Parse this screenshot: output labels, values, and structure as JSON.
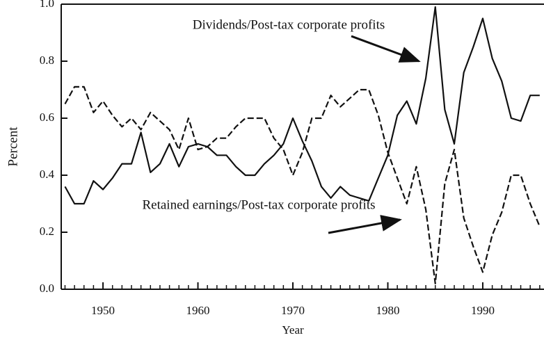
{
  "chart_data": {
    "type": "line",
    "xlabel": "Year",
    "ylabel": "Percent",
    "annotations": [
      "Dividends/Post-tax corporate profits",
      "Retained earnings/Post-tax corporate profits"
    ],
    "x": [
      1946,
      1947,
      1948,
      1949,
      1950,
      1951,
      1952,
      1953,
      1954,
      1955,
      1956,
      1957,
      1958,
      1959,
      1960,
      1961,
      1962,
      1963,
      1964,
      1965,
      1966,
      1967,
      1968,
      1969,
      1970,
      1971,
      1972,
      1973,
      1974,
      1975,
      1976,
      1977,
      1978,
      1979,
      1980,
      1981,
      1982,
      1983,
      1984,
      1985,
      1986,
      1987,
      1988,
      1989,
      1990,
      1991,
      1992,
      1993,
      1994,
      1995,
      1996
    ],
    "series": [
      {
        "name": "Dividends/Post-tax corporate profits",
        "color": "#111111",
        "dash": false,
        "values": [
          0.36,
          0.3,
          0.3,
          0.38,
          0.35,
          0.39,
          0.44,
          0.44,
          0.55,
          0.41,
          0.44,
          0.51,
          0.43,
          0.5,
          0.51,
          0.5,
          0.47,
          0.47,
          0.43,
          0.4,
          0.4,
          0.44,
          0.47,
          0.51,
          0.6,
          0.52,
          0.45,
          0.36,
          0.32,
          0.36,
          0.33,
          0.32,
          0.31,
          0.39,
          0.47,
          0.61,
          0.66,
          0.58,
          0.74,
          0.99,
          0.63,
          0.51,
          0.76,
          0.85,
          0.95,
          0.81,
          0.73,
          0.6,
          0.59,
          0.68,
          0.68
        ]
      },
      {
        "name": "Retained earnings/Post-tax corporate profits",
        "color": "#111111",
        "dash": true,
        "values": [
          0.65,
          0.71,
          0.71,
          0.62,
          0.66,
          0.61,
          0.57,
          0.6,
          0.56,
          0.62,
          0.59,
          0.56,
          0.49,
          0.6,
          0.49,
          0.5,
          0.53,
          0.53,
          0.57,
          0.6,
          0.6,
          0.6,
          0.53,
          0.49,
          0.4,
          0.48,
          0.6,
          0.6,
          0.68,
          0.64,
          0.67,
          0.7,
          0.7,
          0.61,
          0.48,
          0.39,
          0.3,
          0.43,
          0.28,
          0.02,
          0.37,
          0.49,
          0.25,
          0.15,
          0.06,
          0.19,
          0.27,
          0.4,
          0.4,
          0.3,
          0.22
        ]
      }
    ],
    "xlim": [
      1945.6,
      1996.45
    ],
    "xticks": [
      1950,
      1960,
      1970,
      1980,
      1990
    ],
    "xminor": [
      1946,
      1947,
      1948,
      1949,
      1951,
      1952,
      1953,
      1954,
      1955,
      1956,
      1957,
      1958,
      1959,
      1961,
      1962,
      1963,
      1964,
      1965,
      1966,
      1967,
      1968,
      1969,
      1971,
      1972,
      1973,
      1974,
      1975,
      1976,
      1977,
      1978,
      1979,
      1981,
      1982,
      1983,
      1984,
      1985,
      1986,
      1987,
      1988,
      1989,
      1991,
      1992,
      1993,
      1994,
      1995,
      1996
    ],
    "ylim": [
      0,
      1
    ],
    "yticks": [
      {
        "value": 0,
        "label": "0.0"
      },
      0.2,
      0.4,
      0.6,
      0.8,
      {
        "value": 1,
        "label": "1.0"
      }
    ],
    "grid": false
  }
}
